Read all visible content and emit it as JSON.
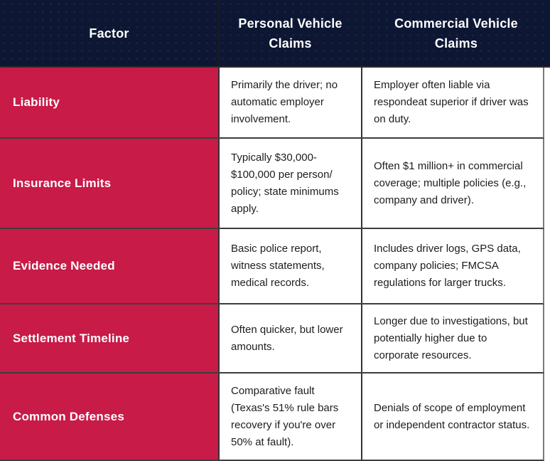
{
  "colors": {
    "header_bg": "#0d1733",
    "factor_bg": "#c81b48",
    "header_text": "#ffffff",
    "body_text": "#1d1d1d",
    "grid_border": "#3d3d3d"
  },
  "header": {
    "factor": "Factor",
    "personal": "Personal Vehicle\nClaims",
    "commercial": "Commercial Vehicle\nClaims"
  },
  "rows": [
    {
      "factor": "Liability",
      "personal": "Primarily the driver; no\nautomatic employer\ninvolvement.",
      "commercial": "Employer often liable via\nrespondeat superior if driver was\non duty."
    },
    {
      "factor": "Insurance Limits",
      "personal": "Typically $30,000-\n$100,000 per person/\npolicy; state minimums\napply.",
      "commercial": "Often $1 million+ in commercial\ncoverage; multiple policies (e.g.,\ncompany and driver)."
    },
    {
      "factor": "Evidence Needed",
      "personal": "Basic police report,\nwitness statements,\nmedical records.",
      "commercial": "Includes driver logs, GPS data,\ncompany policies; FMCSA\nregulations for larger trucks."
    },
    {
      "factor": "Settlement Timeline",
      "personal": "Often quicker, but lower\namounts.",
      "commercial": "Longer due to investigations, but\npotentially higher due to\ncorporate resources."
    },
    {
      "factor": "Common Defenses",
      "personal": "Comparative fault\n(Texas's 51% rule bars\nrecovery if you're over\n50% at fault).",
      "commercial": "Denials of scope of employment\nor independent contractor status."
    }
  ]
}
